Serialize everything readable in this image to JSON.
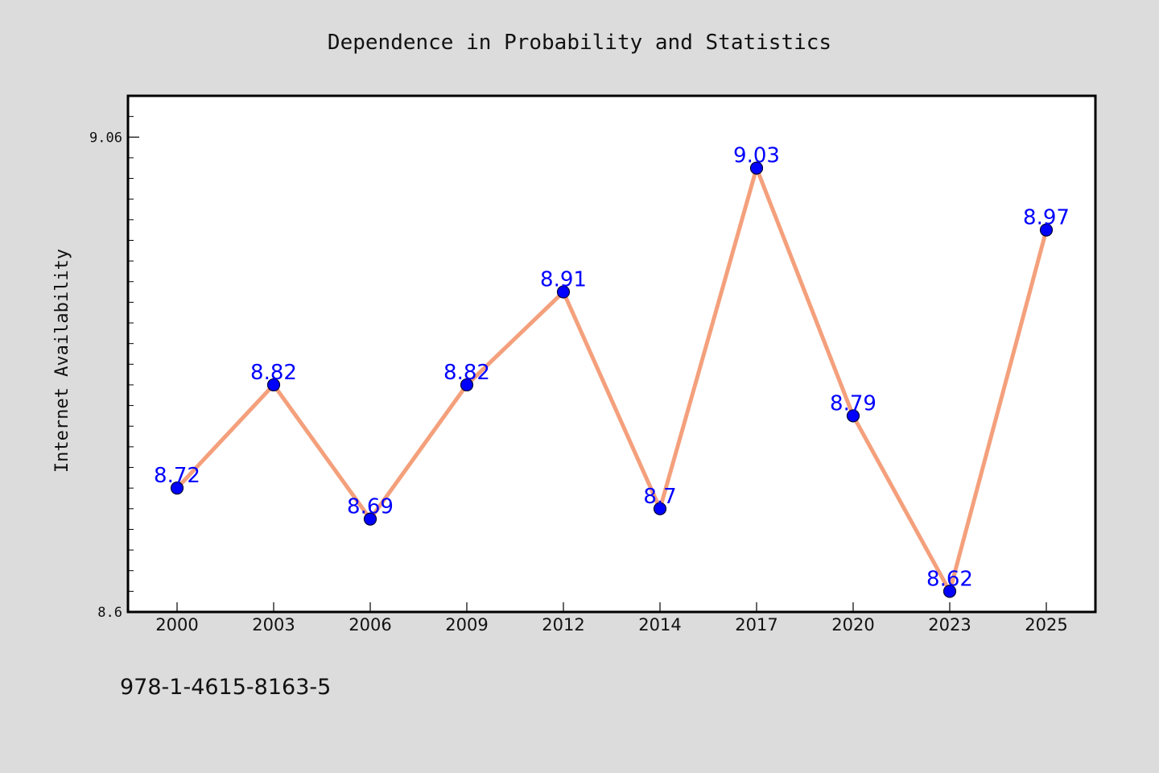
{
  "chart_data": {
    "type": "line",
    "title": "Dependence in Probability and Statistics",
    "xlabel": "",
    "ylabel": "Internet Availability",
    "categories": [
      "2000",
      "2003",
      "2006",
      "2009",
      "2012",
      "2014",
      "2017",
      "2020",
      "2023",
      "2025"
    ],
    "series": [
      {
        "values": [
          8.72,
          8.82,
          8.69,
          8.82,
          8.91,
          8.7,
          9.03,
          8.79,
          8.62,
          8.97
        ],
        "data_labels": [
          "8.72",
          "8.82",
          "8.69",
          "8.82",
          "8.91",
          "8.7",
          "9.03",
          "8.79",
          "8.62",
          "8.97"
        ]
      }
    ],
    "ylim": [
      8.6,
      9.1
    ],
    "y_tick_labels": [
      "8.6",
      "9.06"
    ],
    "y_tick_values": [
      8.6,
      9.06
    ],
    "grid": false,
    "legend": "none",
    "colors": {
      "line": "#f4a07c",
      "marker": "#0000ff",
      "marker_edge": "#000033",
      "data_label": "#0000ff",
      "plot_background": "#ffffff",
      "figure_background": "#dcdcdc"
    }
  },
  "footnote": "978-1-4615-8163-5"
}
